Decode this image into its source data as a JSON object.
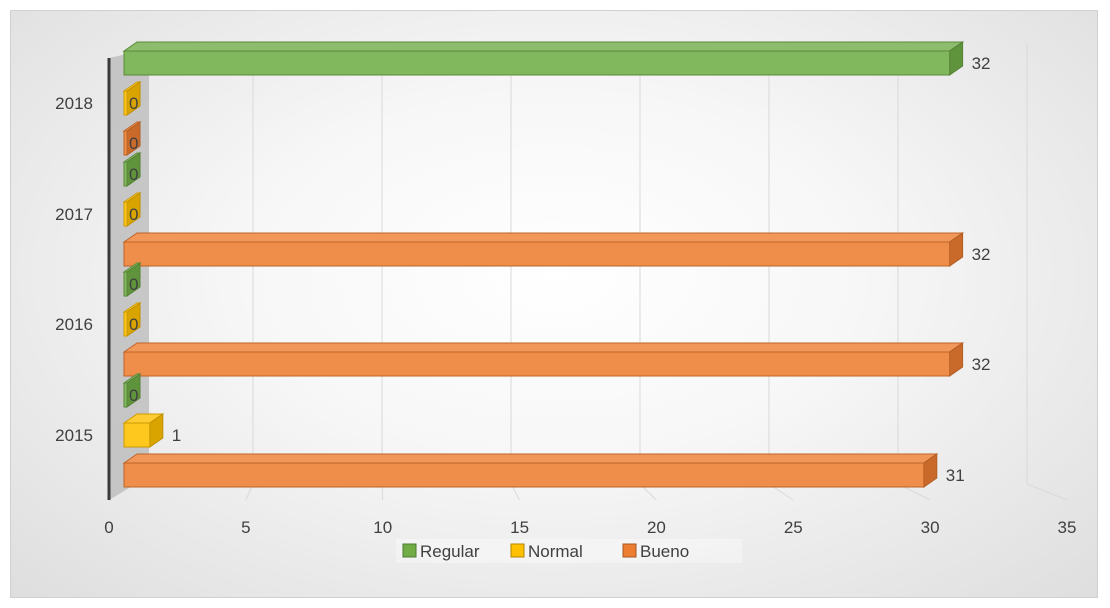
{
  "chart_data": {
    "type": "bar",
    "orientation": "horizontal",
    "style": "3d",
    "title": "",
    "xlabel": "",
    "ylabel": "",
    "categories": [
      "2015",
      "2016",
      "2017",
      "2018"
    ],
    "series": [
      {
        "name": "Regular",
        "color": "#70ad47",
        "values": [
          0,
          0,
          0,
          32
        ]
      },
      {
        "name": "Normal",
        "color": "#ffc000",
        "values": [
          1,
          0,
          0,
          0
        ]
      },
      {
        "name": "Bueno",
        "color": "#ed7d31",
        "values": [
          31,
          32,
          32,
          0
        ]
      }
    ],
    "xlim": [
      0,
      35
    ],
    "xticks": [
      "0",
      "5",
      "10",
      "15",
      "20",
      "25",
      "30",
      "35"
    ],
    "grid": true,
    "legend": "bottom",
    "data_labels": true
  }
}
